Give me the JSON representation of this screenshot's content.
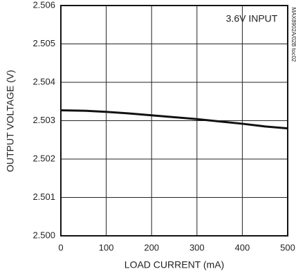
{
  "chart_data": {
    "type": "line",
    "x_label": "LOAD CURRENT (mA)",
    "y_label": "OUTPUT VOLTAGE (V)",
    "annotation": "3.6V INPUT",
    "side_note": "MAX8902A/02B toc02",
    "x": [
      0,
      50,
      100,
      150,
      200,
      250,
      300,
      350,
      400,
      450,
      500
    ],
    "series": [
      {
        "color": "#111111",
        "values": [
          2.50327,
          2.50326,
          2.50323,
          2.50319,
          2.50314,
          2.50309,
          2.50304,
          2.50298,
          2.50292,
          2.50285,
          2.5028
        ]
      }
    ],
    "xlim": [
      0,
      500
    ],
    "xticks": [
      0,
      100,
      200,
      300,
      400,
      500
    ],
    "ylim": [
      2.5,
      2.506
    ],
    "yticks": [
      {
        "value": 2.5,
        "label": "2.500"
      },
      2.501,
      2.502,
      2.503,
      2.504,
      2.505,
      2.506
    ],
    "grid": true
  }
}
